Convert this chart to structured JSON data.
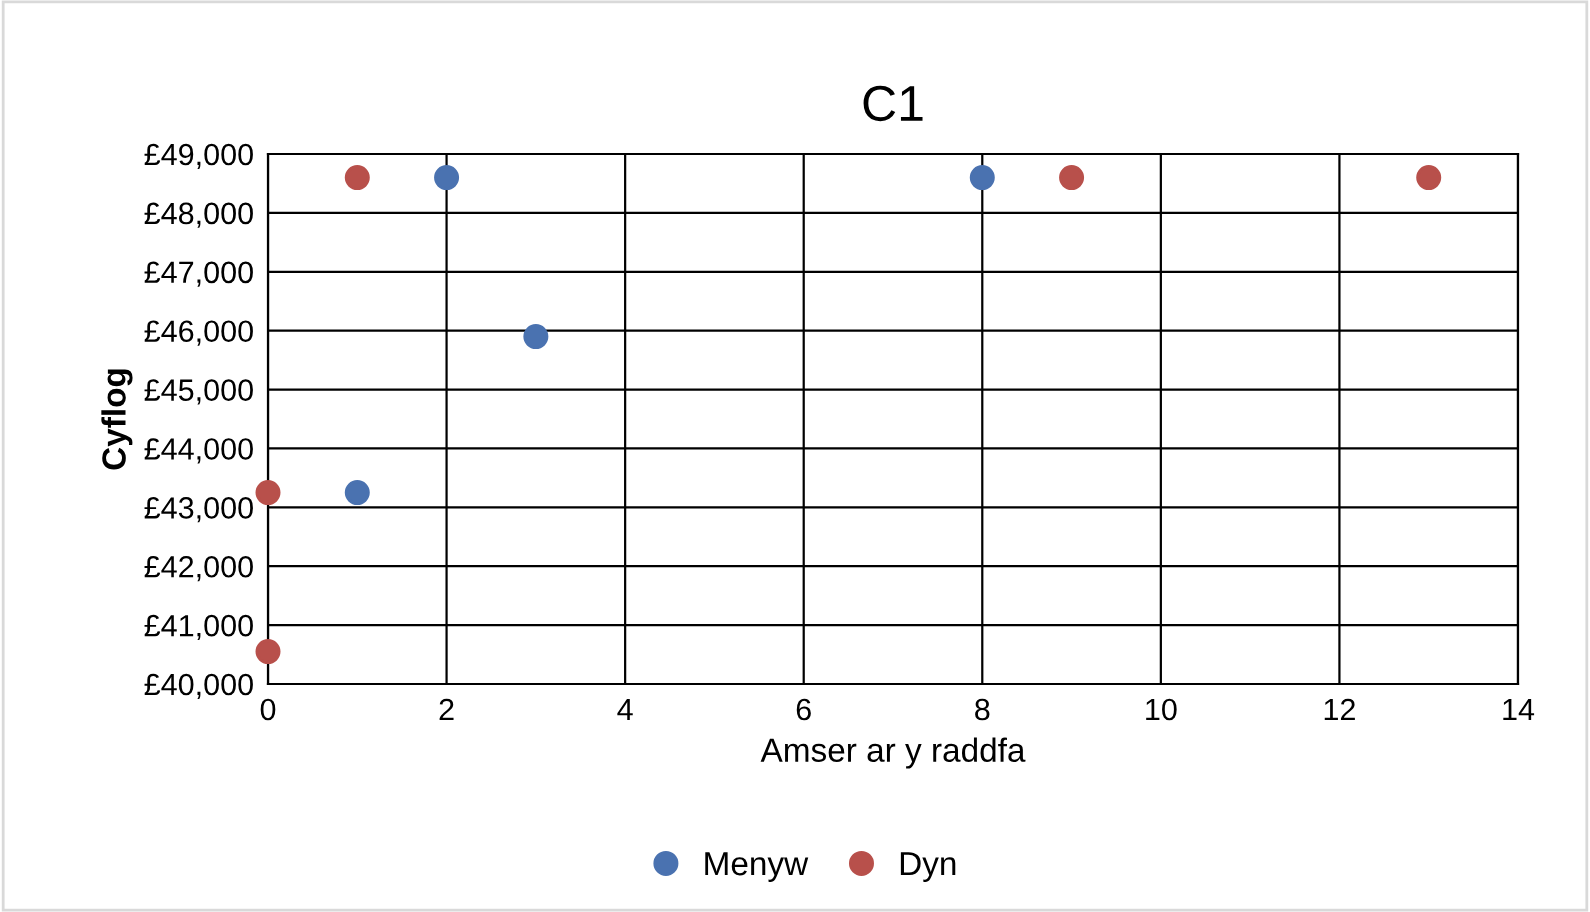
{
  "chart_data": {
    "type": "scatter",
    "title": "C1",
    "xlabel": "Amser ar y raddfa",
    "ylabel": "Cyflog",
    "series": [
      {
        "name": "Menyw",
        "color": "#4a72b0",
        "x": [
          1,
          2,
          3,
          8
        ],
        "values": [
          43250,
          48600,
          45900,
          48600
        ]
      },
      {
        "name": "Dyn",
        "color": "#b8504b",
        "x": [
          0,
          0,
          1,
          9,
          13
        ],
        "values": [
          43250,
          40550,
          48600,
          48600,
          48600
        ]
      }
    ],
    "xlim": [
      0,
      14
    ],
    "xticks": [
      0,
      2,
      4,
      6,
      8,
      10,
      12,
      14
    ],
    "ylim": [
      40000,
      49000
    ],
    "yticks": [
      {
        "value": 40000,
        "label": "£40,000"
      },
      {
        "value": 41000,
        "label": "£41,000"
      },
      {
        "value": 42000,
        "label": "£42,000"
      },
      {
        "value": 43000,
        "label": "£43,000"
      },
      {
        "value": 44000,
        "label": "£44,000"
      },
      {
        "value": 45000,
        "label": "£45,000"
      },
      {
        "value": 46000,
        "label": "£46,000"
      },
      {
        "value": 47000,
        "label": "£47,000"
      },
      {
        "value": 48000,
        "label": "£48,000"
      },
      {
        "value": 49000,
        "label": "£49,000"
      }
    ],
    "grid": true,
    "legend": "bottom",
    "marker": "circle"
  }
}
